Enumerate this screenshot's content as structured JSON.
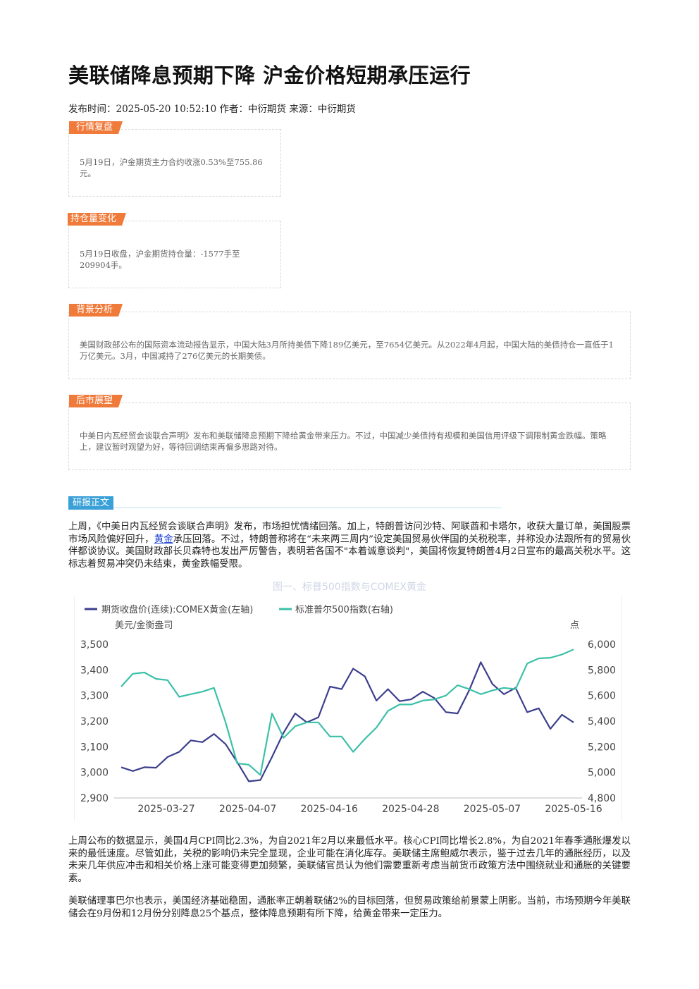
{
  "article": {
    "title": "美联储降息预期下降 沪金价格短期承压运行",
    "meta": "发布时间：2025-05-20 10:52:10 作者：中衍期货 来源：中衍期货"
  },
  "boxes": [
    {
      "tag": "行情复盘",
      "text": "5月19日，沪金期货主力合约收涨0.53%至755.86元。"
    },
    {
      "tag": "持仓量变化",
      "text": "5月19日收盘，沪金期货持仓量：-1577手至209904手。"
    },
    {
      "tag": "背景分析",
      "text": "美国财政部公布的国际资本流动报告显示，中国大陆3月所持美债下降189亿美元，至7654亿美元。从2022年4月起，中国大陆的美债持仓一直低于1万亿美元。3月，中国减持了276亿美元的长期美债。"
    },
    {
      "tag": "后市展望",
      "text": "中美日内瓦经贸会谈联合声明》发布和美联储降息预期下降给黄金带来压力。不过，中国减少美债持有规模和美国信用评级下调限制黄金跌幅。策略上，建议暂时观望为好，等待回调结束再偏多思路对待。"
    }
  ],
  "report": {
    "label": "研报正文",
    "para1_before": "上周，《中美日内瓦经贸会谈联合声明》发布，市场担忧情绪回落。加上，特朗普访问沙特、阿联酋和卡塔尔，收获大量订单，美国股票市场风险偏好回升，",
    "para1_link": "黄金",
    "para1_after": "承压回落。不过，特朗普称将在“未来两三周内”设定美国贸易伙伴国的关税税率，并称没办法跟所有的贸易伙伴都谈协议。美国财政部长贝森特也发出严厉警告，表明若各国不\"本着诚意谈判\"，美国将恢复特朗普4月2日宣布的最高关税水平。这标志着贸易冲突仍未结束，黄金跌幅受限。",
    "para2": "上周公布的数据显示，美国4月CPI同比2.3%，为自2021年2月以来最低水平。核心CPI同比增长2.8%，为自2021年春季通胀爆发以来的最低速度。尽管如此，关税的影响仍未完全显现，企业可能在消化库存。美联储主席鲍威尔表示，鉴于过去几年的通胀经历，以及未来几年供应冲击和相关价格上涨可能变得更加频繁，美联储官员认为他们需要重新考虑当前货币政策方法中围绕就业和通胀的关键要素。",
    "para3": "美联储理事巴尔也表示，美国经济基础稳固，通胀率正朝着联储2%的目标回落，但贸易政策给前景蒙上阴影。当前，市场预期今年美联储会在9月份和12月份分别降息25个基点，整体降息预期有所下降，给黄金带来一定压力。"
  },
  "chart_data": {
    "type": "line",
    "title": "图一、标普500指数与COMEX黄金",
    "left_unit": "美元/金衡盎司",
    "right_unit": "点",
    "left_ylim": [
      2900,
      3500
    ],
    "right_ylim": [
      4800,
      6000
    ],
    "left_ticks": [
      "2,900",
      "3,000",
      "3,100",
      "3,200",
      "3,300",
      "3,400",
      "3,500"
    ],
    "right_ticks": [
      "4,800",
      "5,000",
      "5,200",
      "5,400",
      "5,600",
      "5,800",
      "6,000"
    ],
    "x_ticks": [
      "2025-03-27",
      "2025-04-07",
      "2025-04-16",
      "2025-04-28",
      "2025-05-07",
      "2025-05-16"
    ],
    "colors": {
      "gold": "#3b3f8c",
      "spx": "#3cc0a8"
    },
    "series": [
      {
        "name": "期货收盘价(连续):COMEX黄金(左轴)",
        "axis": "left",
        "color": "#3b3f8c",
        "values": [
          3020,
          3005,
          3020,
          3018,
          3060,
          3080,
          3125,
          3118,
          3150,
          3110,
          3040,
          2965,
          2970,
          3060,
          3155,
          3230,
          3195,
          3215,
          3335,
          3325,
          3405,
          3375,
          3280,
          3325,
          3278,
          3285,
          3315,
          3290,
          3235,
          3230,
          3320,
          3430,
          3345,
          3305,
          3330,
          3235,
          3250,
          3170,
          3225,
          3195
        ]
      },
      {
        "name": "标准普尔500指数(右轴)",
        "axis": "right",
        "color": "#3cc0a8",
        "values": [
          5670,
          5770,
          5780,
          5730,
          5720,
          5590,
          5610,
          5630,
          5660,
          5390,
          5070,
          5060,
          4980,
          5460,
          5270,
          5360,
          5390,
          5390,
          5280,
          5280,
          5160,
          5260,
          5350,
          5480,
          5530,
          5530,
          5560,
          5570,
          5600,
          5680,
          5650,
          5610,
          5640,
          5660,
          5650,
          5850,
          5890,
          5895,
          5920,
          5960
        ]
      }
    ]
  }
}
